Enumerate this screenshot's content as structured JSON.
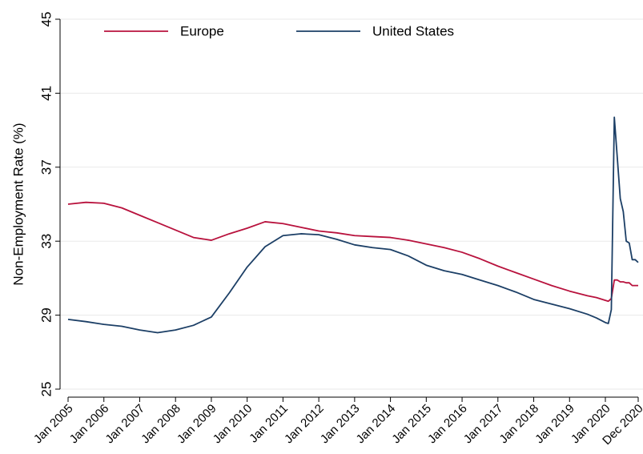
{
  "chart_data": {
    "type": "line",
    "y_label": "Non-Employment Rate (%)",
    "x": [
      "Jan 2005",
      "Jul 2005",
      "Jan 2006",
      "Jul 2006",
      "Jan 2007",
      "Jul 2007",
      "Jan 2008",
      "Jul 2008",
      "Jan 2009",
      "Jul 2009",
      "Jan 2010",
      "Jul 2010",
      "Jan 2011",
      "Jul 2011",
      "Jan 2012",
      "Jul 2012",
      "Jan 2013",
      "Jul 2013",
      "Jan 2014",
      "Jul 2014",
      "Jan 2015",
      "Jul 2015",
      "Jan 2016",
      "Jul 2016",
      "Jan 2017",
      "Jul 2017",
      "Jan 2018",
      "Jul 2018",
      "Jan 2019",
      "Jul 2019",
      "Oct 2019",
      "Jan 2020",
      "Feb 2020",
      "Mar 2020",
      "Apr 2020",
      "May 2020",
      "Jun 2020",
      "Jul 2020",
      "Aug 2020",
      "Sep 2020",
      "Oct 2020",
      "Nov 2020",
      "Dec 2020"
    ],
    "series": [
      {
        "name": "Europe",
        "color": "#b8123d",
        "values": [
          35.0,
          35.1,
          35.05,
          34.8,
          34.4,
          34.0,
          33.6,
          33.2,
          33.05,
          33.4,
          33.7,
          34.05,
          33.95,
          33.75,
          33.55,
          33.45,
          33.3,
          33.25,
          33.2,
          33.05,
          32.85,
          32.65,
          32.4,
          32.05,
          31.65,
          31.3,
          30.95,
          30.6,
          30.3,
          30.05,
          29.95,
          29.8,
          29.75,
          29.9,
          30.9,
          30.9,
          30.8,
          30.8,
          30.75,
          30.75,
          30.6,
          30.6,
          30.6
        ]
      },
      {
        "name": "United States",
        "color": "#1c3f66",
        "values": [
          28.77,
          28.65,
          28.5,
          28.4,
          28.2,
          28.05,
          28.2,
          28.45,
          28.9,
          30.2,
          31.6,
          32.7,
          33.3,
          33.4,
          33.35,
          33.1,
          32.8,
          32.65,
          32.55,
          32.2,
          31.7,
          31.4,
          31.2,
          30.9,
          30.6,
          30.25,
          29.85,
          29.6,
          29.35,
          29.05,
          28.85,
          28.6,
          28.55,
          29.3,
          39.7,
          37.5,
          35.3,
          34.6,
          33.0,
          32.9,
          32.0,
          32.0,
          31.85
        ]
      }
    ],
    "xticks": [
      "Jan 2005",
      "Jan 2006",
      "Jan 2007",
      "Jan 2008",
      "Jan 2009",
      "Jan 2010",
      "Jan 2011",
      "Jan 2012",
      "Jan 2013",
      "Jan 2014",
      "Jan 2015",
      "Jan 2016",
      "Jan 2017",
      "Jan 2018",
      "Jan 2019",
      "Jan 2020",
      "Dec 2020"
    ],
    "ylim": [
      25,
      45
    ],
    "yticks": [
      25,
      29,
      33,
      37,
      41,
      45
    ],
    "grid": true,
    "legend": "top"
  }
}
